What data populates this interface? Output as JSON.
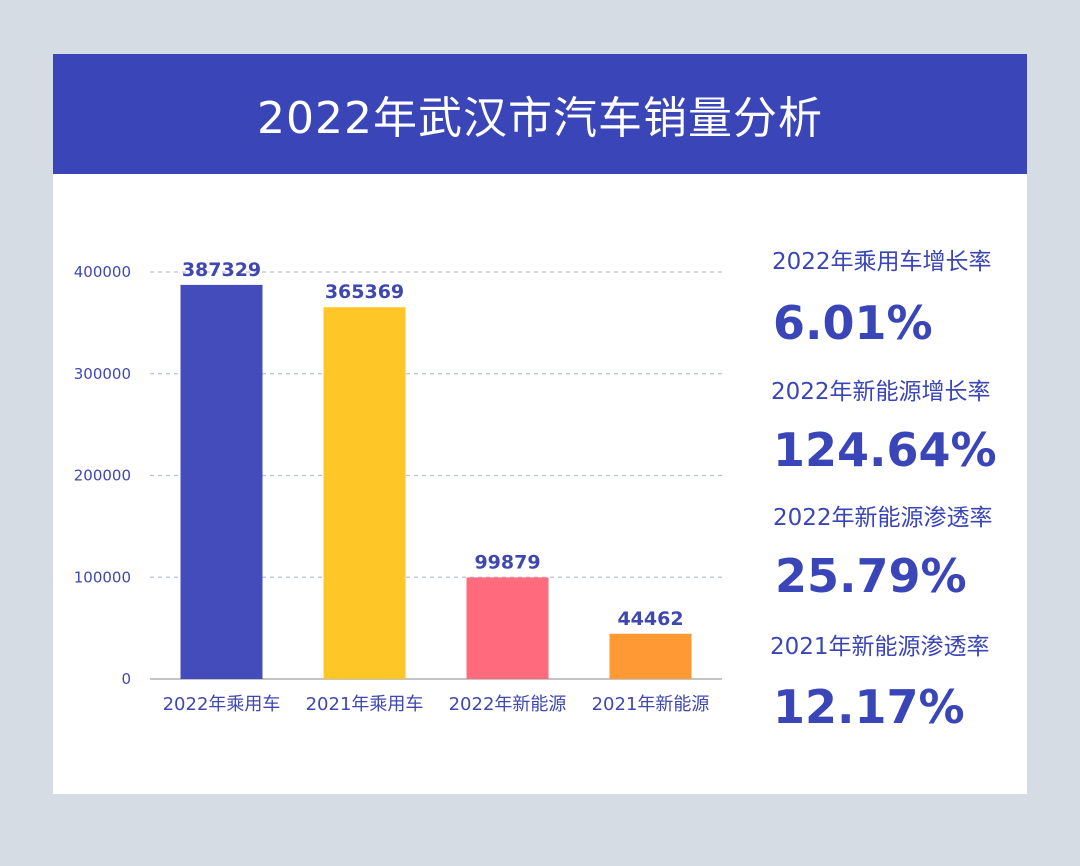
{
  "title": "2022年武汉市汽车销量分析",
  "colors": {
    "background": "#d5dce4",
    "card": "#ffffff",
    "banner": "#3a45b8",
    "accent_text": "#3a45b8",
    "grid": "#b7bde6",
    "axis": "#888888"
  },
  "chart_data": {
    "type": "bar",
    "categories": [
      "2022年乘用车",
      "2021年乘用车",
      "2022年新能源",
      "2021年新能源"
    ],
    "values": [
      387329,
      365369,
      99879,
      44462
    ],
    "bar_colors": [
      "#444cbb",
      "#ffc627",
      "#ff6b7c",
      "#ff9933"
    ],
    "ylim": [
      0,
      400000
    ],
    "yticks": [
      0,
      100000,
      200000,
      300000,
      400000
    ],
    "grid": true,
    "legend": false
  },
  "stats": [
    {
      "label": "2022年乘用车增长率",
      "value": "6.01%"
    },
    {
      "label": "2022年新能源增长率",
      "value": "124.64%"
    },
    {
      "label": "2022年新能源渗透率",
      "value": "25.79%"
    },
    {
      "label": "2021年新能源渗透率",
      "value": "12.17%"
    }
  ]
}
